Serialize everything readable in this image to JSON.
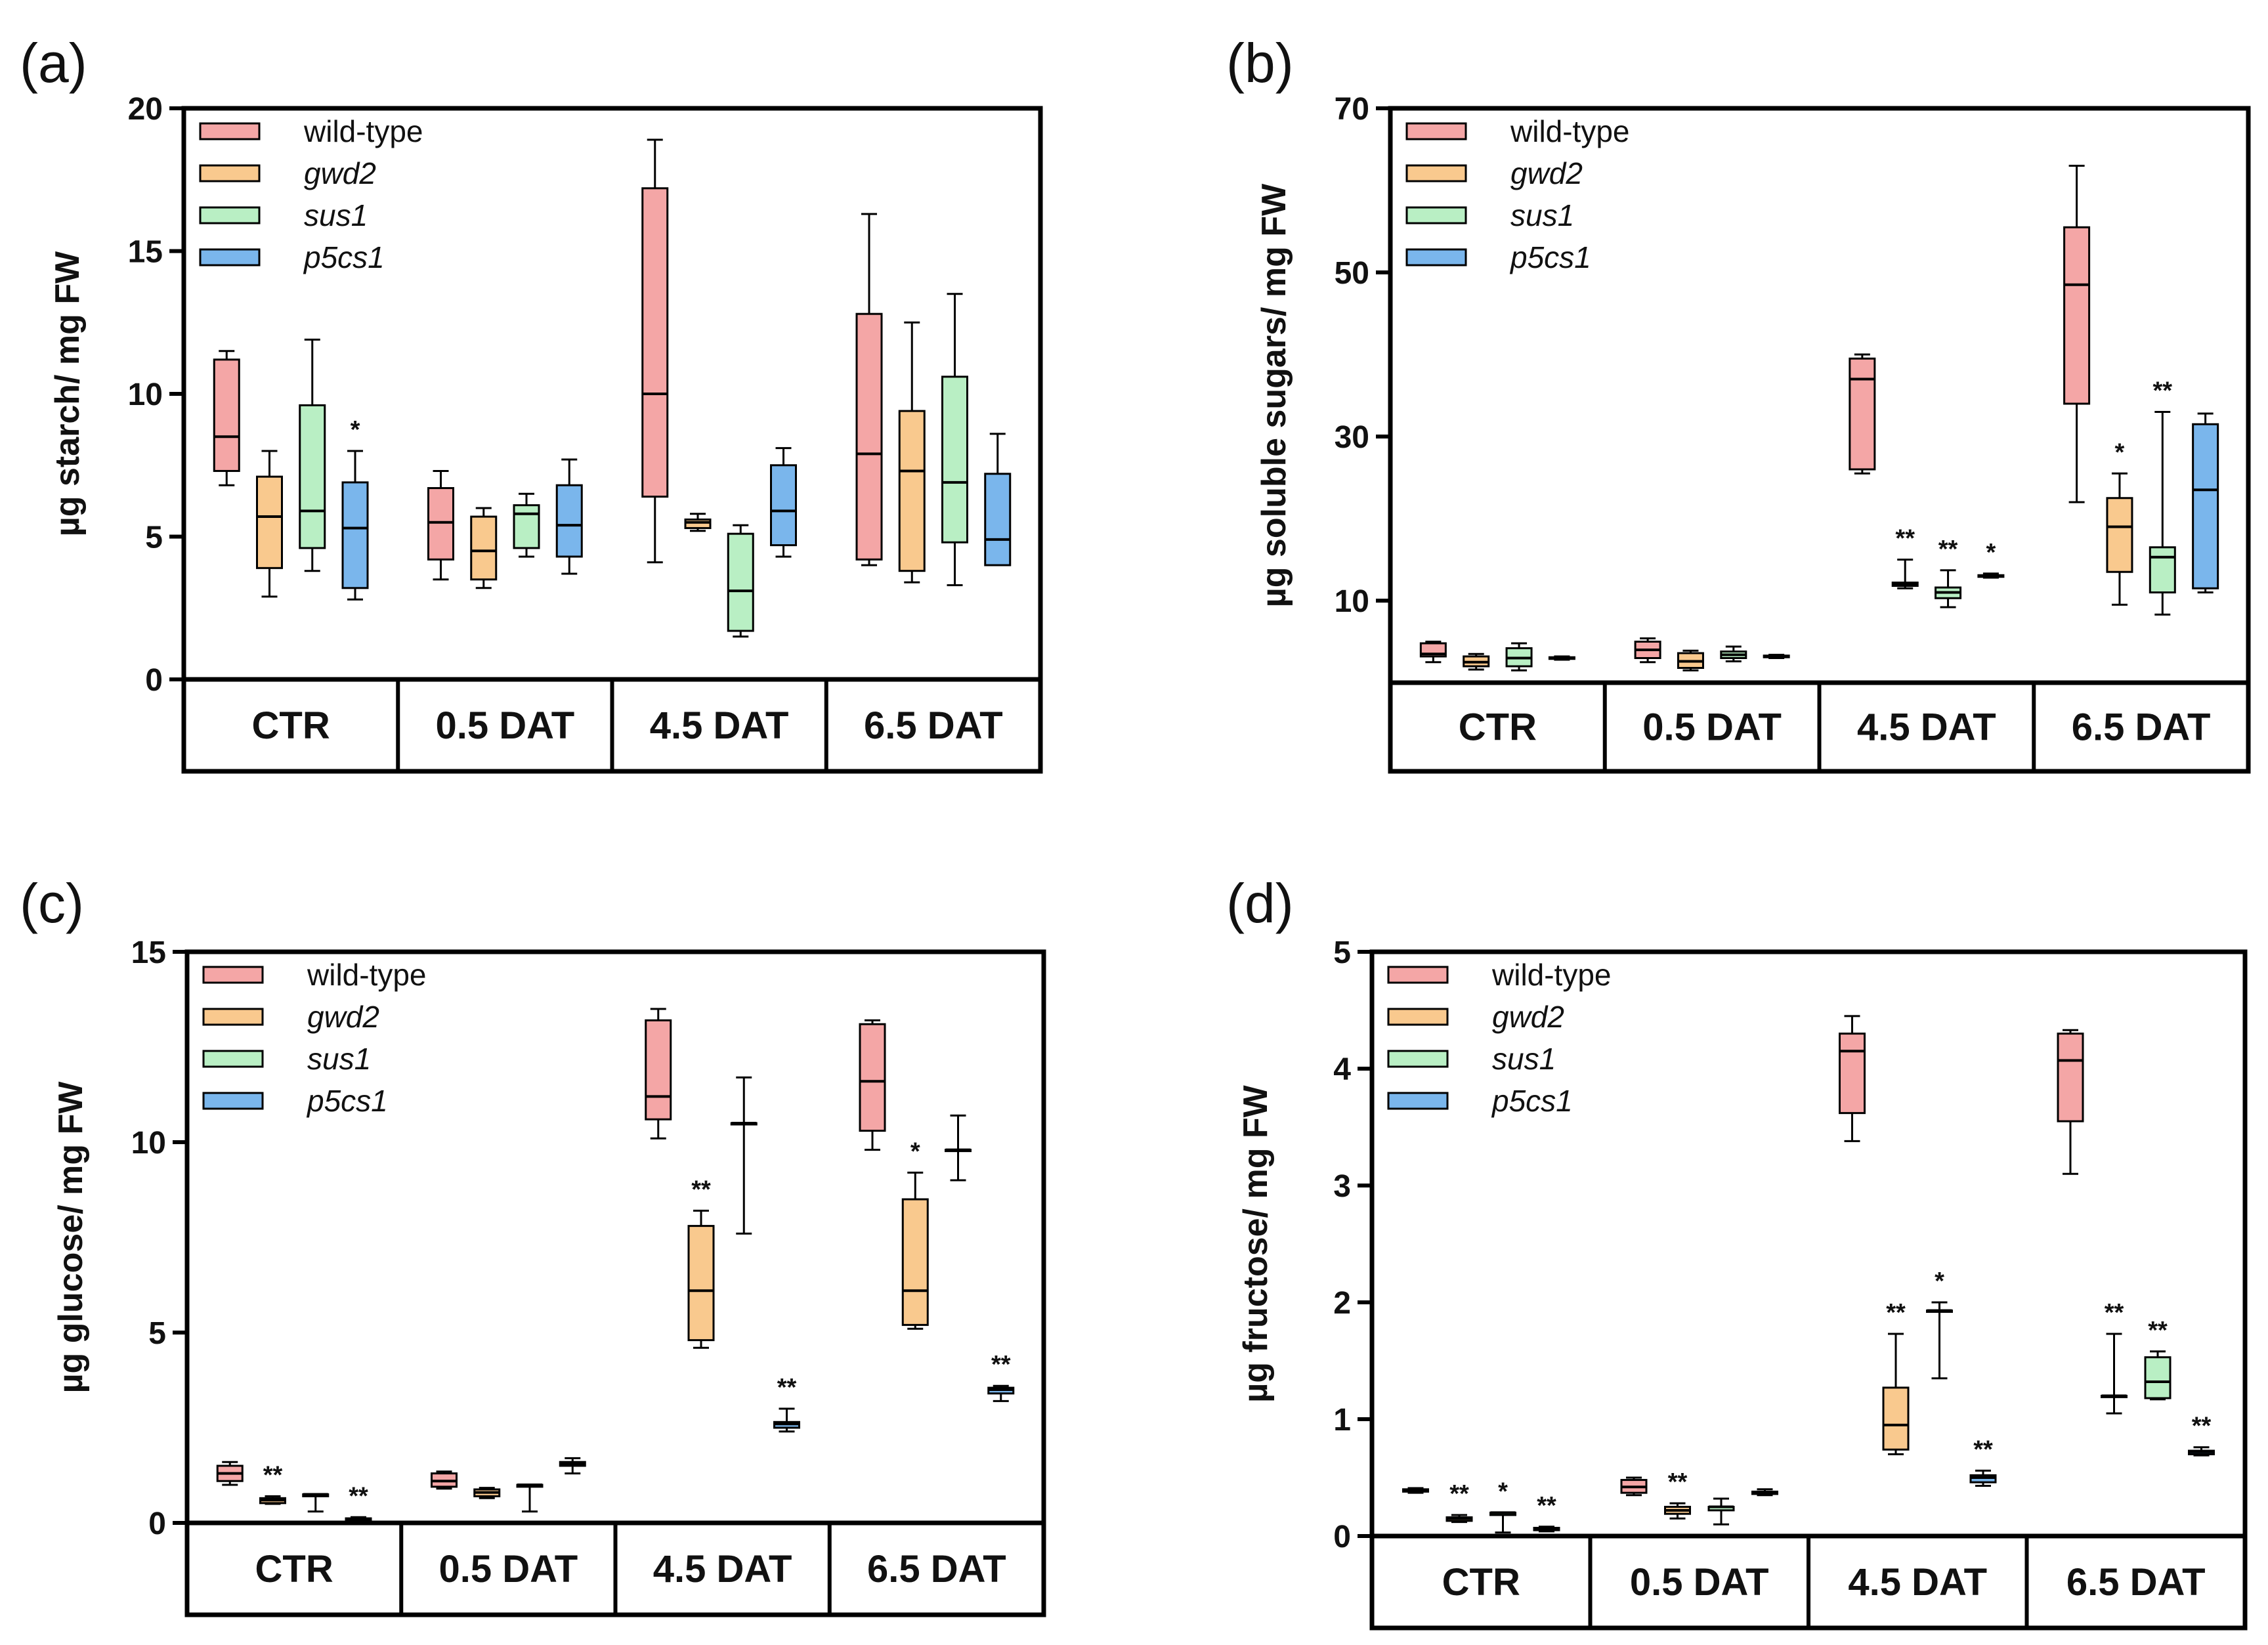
{
  "groups": [
    "CTR",
    "0.5 DAT",
    "4.5 DAT",
    "6.5 DAT"
  ],
  "legend": [
    {
      "label": "wild-type",
      "italic": false
    },
    {
      "label": "gwd2",
      "italic": true
    },
    {
      "label": "sus1",
      "italic": true
    },
    {
      "label": "p5cs1",
      "italic": true
    }
  ],
  "colors": [
    "#f4a6a6",
    "#f9c98e",
    "#b9efc4",
    "#7ab6ec"
  ],
  "chart_data": [
    {
      "type": "box",
      "panel": "(a)",
      "ylabel": "µg starch/ mg FW",
      "ylim": [
        0,
        20
      ],
      "yticks": [
        0,
        5,
        10,
        15,
        20
      ],
      "ytick_labels": [
        "0",
        "5",
        "10",
        "15",
        "20"
      ],
      "series": [
        {
          "name": "wild-type",
          "boxes": [
            {
              "min": 6.8,
              "q1": 7.3,
              "med": 8.5,
              "q3": 11.2,
              "max": 11.5,
              "sig": ""
            },
            {
              "min": 3.5,
              "q1": 4.2,
              "med": 5.5,
              "q3": 6.7,
              "max": 7.3,
              "sig": ""
            },
            {
              "min": 4.1,
              "q1": 6.4,
              "med": 10.0,
              "q3": 17.2,
              "max": 18.9,
              "sig": ""
            },
            {
              "min": 4.0,
              "q1": 4.2,
              "med": 7.9,
              "q3": 12.8,
              "max": 16.3,
              "sig": ""
            }
          ]
        },
        {
          "name": "gwd2",
          "boxes": [
            {
              "min": 2.9,
              "q1": 3.9,
              "med": 5.7,
              "q3": 7.1,
              "max": 8.0,
              "sig": ""
            },
            {
              "min": 3.2,
              "q1": 3.5,
              "med": 4.5,
              "q3": 5.7,
              "max": 6.0,
              "sig": ""
            },
            {
              "min": 5.2,
              "q1": 5.3,
              "med": 5.5,
              "q3": 5.6,
              "max": 5.8,
              "sig": ""
            },
            {
              "min": 3.4,
              "q1": 3.8,
              "med": 7.3,
              "q3": 9.4,
              "max": 12.5,
              "sig": ""
            }
          ]
        },
        {
          "name": "sus1",
          "boxes": [
            {
              "min": 3.8,
              "q1": 4.6,
              "med": 5.9,
              "q3": 9.6,
              "max": 11.9,
              "sig": ""
            },
            {
              "min": 4.3,
              "q1": 4.6,
              "med": 5.8,
              "q3": 6.1,
              "max": 6.5,
              "sig": ""
            },
            {
              "min": 1.5,
              "q1": 1.7,
              "med": 3.1,
              "q3": 5.1,
              "max": 5.4,
              "sig": ""
            },
            {
              "min": 3.3,
              "q1": 4.8,
              "med": 6.9,
              "q3": 10.6,
              "max": 13.5,
              "sig": ""
            }
          ]
        },
        {
          "name": "p5cs1",
          "boxes": [
            {
              "min": 2.8,
              "q1": 3.2,
              "med": 5.3,
              "q3": 6.9,
              "max": 8.0,
              "sig": "*"
            },
            {
              "min": 3.7,
              "q1": 4.3,
              "med": 5.4,
              "q3": 6.8,
              "max": 7.7,
              "sig": ""
            },
            {
              "min": 4.3,
              "q1": 4.7,
              "med": 5.9,
              "q3": 7.5,
              "max": 8.1,
              "sig": ""
            },
            {
              "min": 4.0,
              "q1": 4.0,
              "med": 4.9,
              "q3": 7.2,
              "max": 8.6,
              "sig": ""
            }
          ]
        }
      ]
    },
    {
      "type": "box",
      "panel": "(b)",
      "ylabel": "µg soluble sugars/ mg FW",
      "ylim": [
        0,
        70
      ],
      "yticks": [
        10,
        30,
        50,
        70
      ],
      "ytick_labels": [
        "10",
        "30",
        "50",
        "70"
      ],
      "series": [
        {
          "name": "wild-type",
          "boxes": [
            {
              "min": 2.5,
              "q1": 3.2,
              "med": 3.5,
              "q3": 4.8,
              "max": 5.0,
              "sig": ""
            },
            {
              "min": 2.5,
              "q1": 3.0,
              "med": 4.0,
              "q3": 5.0,
              "max": 5.4,
              "sig": ""
            },
            {
              "min": 25.5,
              "q1": 26.0,
              "med": 37.0,
              "q3": 39.5,
              "max": 40.0,
              "sig": ""
            },
            {
              "min": 22.0,
              "q1": 34.0,
              "med": 48.5,
              "q3": 55.5,
              "max": 63.0,
              "sig": ""
            }
          ]
        },
        {
          "name": "gwd2",
          "boxes": [
            {
              "min": 1.6,
              "q1": 2.0,
              "med": 2.5,
              "q3": 3.2,
              "max": 3.5,
              "sig": ""
            },
            {
              "min": 1.5,
              "q1": 1.8,
              "med": 2.6,
              "q3": 3.6,
              "max": 3.9,
              "sig": ""
            },
            {
              "min": 11.5,
              "q1": 11.8,
              "med": 12.0,
              "q3": 12.2,
              "max": 15.0,
              "sig": "**"
            },
            {
              "min": 9.5,
              "q1": 13.5,
              "med": 19.0,
              "q3": 22.5,
              "max": 25.5,
              "sig": "*"
            }
          ]
        },
        {
          "name": "sus1",
          "boxes": [
            {
              "min": 1.5,
              "q1": 2.0,
              "med": 3.0,
              "q3": 4.2,
              "max": 4.8,
              "sig": ""
            },
            {
              "min": 2.6,
              "q1": 3.0,
              "med": 3.4,
              "q3": 3.8,
              "max": 4.4,
              "sig": ""
            },
            {
              "min": 9.2,
              "q1": 10.3,
              "med": 11.0,
              "q3": 11.6,
              "max": 13.7,
              "sig": "**"
            },
            {
              "min": 8.3,
              "q1": 11.0,
              "med": 15.3,
              "q3": 16.5,
              "max": 33.0,
              "sig": "**"
            }
          ]
        },
        {
          "name": "p5cs1",
          "boxes": [
            {
              "min": 2.8,
              "q1": 2.9,
              "med": 3.0,
              "q3": 3.1,
              "max": 3.2,
              "sig": ""
            },
            {
              "min": 3.0,
              "q1": 3.1,
              "med": 3.2,
              "q3": 3.3,
              "max": 3.4,
              "sig": ""
            },
            {
              "min": 12.8,
              "q1": 12.9,
              "med": 13.0,
              "q3": 13.1,
              "max": 13.3,
              "sig": "*"
            },
            {
              "min": 11.0,
              "q1": 11.5,
              "med": 23.5,
              "q3": 31.5,
              "max": 32.8,
              "sig": ""
            }
          ]
        }
      ]
    },
    {
      "type": "box",
      "panel": "(c)",
      "ylabel": "µg glucose/ mg FW",
      "ylim": [
        0,
        15
      ],
      "yticks": [
        0,
        5,
        10,
        15
      ],
      "ytick_labels": [
        "0",
        "5",
        "10",
        "15"
      ],
      "series": [
        {
          "name": "wild-type",
          "boxes": [
            {
              "min": 1.0,
              "q1": 1.1,
              "med": 1.3,
              "q3": 1.5,
              "max": 1.6,
              "sig": ""
            },
            {
              "min": 0.9,
              "q1": 0.95,
              "med": 1.1,
              "q3": 1.3,
              "max": 1.35,
              "sig": ""
            },
            {
              "min": 10.1,
              "q1": 10.6,
              "med": 11.2,
              "q3": 13.2,
              "max": 13.5,
              "sig": ""
            },
            {
              "min": 9.8,
              "q1": 10.3,
              "med": 11.6,
              "q3": 13.1,
              "max": 13.2,
              "sig": ""
            }
          ]
        },
        {
          "name": "gwd2",
          "boxes": [
            {
              "min": 0.5,
              "q1": 0.52,
              "med": 0.6,
              "q3": 0.65,
              "max": 0.7,
              "sig": "**"
            },
            {
              "min": 0.65,
              "q1": 0.7,
              "med": 0.8,
              "q3": 0.88,
              "max": 0.92,
              "sig": ""
            },
            {
              "min": 4.6,
              "q1": 4.8,
              "med": 6.1,
              "q3": 7.8,
              "max": 8.2,
              "sig": "**"
            },
            {
              "min": 5.1,
              "q1": 5.2,
              "med": 6.1,
              "q3": 8.5,
              "max": 9.2,
              "sig": "*"
            }
          ]
        },
        {
          "name": "sus1",
          "boxes": [
            {
              "min": 0.3,
              "q1": 0.7,
              "med": 0.75,
              "q3": 0.75,
              "max": 0.75,
              "sig": ""
            },
            {
              "min": 0.3,
              "q1": 0.95,
              "med": 1.0,
              "q3": 1.0,
              "max": 1.0,
              "sig": ""
            },
            {
              "min": 7.6,
              "q1": 10.5,
              "med": 10.5,
              "q3": 10.5,
              "max": 11.7,
              "sig": ""
            },
            {
              "min": 9.0,
              "q1": 9.8,
              "med": 9.8,
              "q3": 9.8,
              "max": 10.7,
              "sig": ""
            }
          ]
        },
        {
          "name": "p5cs1",
          "boxes": [
            {
              "min": 0.05,
              "q1": 0.08,
              "med": 0.1,
              "q3": 0.12,
              "max": 0.15,
              "sig": "**"
            },
            {
              "min": 1.3,
              "q1": 1.5,
              "med": 1.55,
              "q3": 1.6,
              "max": 1.7,
              "sig": ""
            },
            {
              "min": 2.4,
              "q1": 2.5,
              "med": 2.6,
              "q3": 2.65,
              "max": 3.0,
              "sig": "**"
            },
            {
              "min": 3.2,
              "q1": 3.4,
              "med": 3.5,
              "q3": 3.55,
              "max": 3.6,
              "sig": "**"
            }
          ]
        }
      ]
    },
    {
      "type": "box",
      "panel": "(d)",
      "ylabel": "µg fructose/ mg FW",
      "ylim": [
        0,
        5
      ],
      "yticks": [
        0,
        1,
        2,
        3,
        4,
        5
      ],
      "ytick_labels": [
        "0",
        "1",
        "2",
        "3",
        "4",
        "5"
      ],
      "series": [
        {
          "name": "wild-type",
          "boxes": [
            {
              "min": 0.37,
              "q1": 0.38,
              "med": 0.39,
              "q3": 0.4,
              "max": 0.41,
              "sig": ""
            },
            {
              "min": 0.35,
              "q1": 0.37,
              "med": 0.42,
              "q3": 0.48,
              "max": 0.5,
              "sig": ""
            },
            {
              "min": 3.38,
              "q1": 3.62,
              "med": 4.15,
              "q3": 4.3,
              "max": 4.45,
              "sig": ""
            },
            {
              "min": 3.1,
              "q1": 3.55,
              "med": 4.07,
              "q3": 4.3,
              "max": 4.33,
              "sig": ""
            }
          ]
        },
        {
          "name": "gwd2",
          "boxes": [
            {
              "min": 0.12,
              "q1": 0.13,
              "med": 0.15,
              "q3": 0.16,
              "max": 0.18,
              "sig": "**"
            },
            {
              "min": 0.15,
              "q1": 0.19,
              "med": 0.22,
              "q3": 0.25,
              "max": 0.28,
              "sig": "**"
            },
            {
              "min": 0.7,
              "q1": 0.74,
              "med": 0.95,
              "q3": 1.27,
              "max": 1.73,
              "sig": "**"
            },
            {
              "min": 1.05,
              "q1": 1.2,
              "med": 1.2,
              "q3": 1.2,
              "max": 1.73,
              "sig": "**"
            }
          ]
        },
        {
          "name": "sus1",
          "boxes": [
            {
              "min": 0.03,
              "q1": 0.18,
              "med": 0.2,
              "q3": 0.2,
              "max": 0.2,
              "sig": "*"
            },
            {
              "min": 0.1,
              "q1": 0.22,
              "med": 0.25,
              "q3": 0.25,
              "max": 0.32,
              "sig": ""
            },
            {
              "min": 1.35,
              "q1": 1.93,
              "med": 1.93,
              "q3": 1.93,
              "max": 2.0,
              "sig": "*"
            },
            {
              "min": 1.17,
              "q1": 1.18,
              "med": 1.32,
              "q3": 1.53,
              "max": 1.58,
              "sig": "**"
            }
          ]
        },
        {
          "name": "p5cs1",
          "boxes": [
            {
              "min": 0.04,
              "q1": 0.05,
              "med": 0.06,
              "q3": 0.07,
              "max": 0.08,
              "sig": "**"
            },
            {
              "min": 0.35,
              "q1": 0.36,
              "med": 0.37,
              "q3": 0.38,
              "max": 0.4,
              "sig": ""
            },
            {
              "min": 0.43,
              "q1": 0.46,
              "med": 0.5,
              "q3": 0.52,
              "max": 0.56,
              "sig": "**"
            },
            {
              "min": 0.69,
              "q1": 0.7,
              "med": 0.72,
              "q3": 0.73,
              "max": 0.76,
              "sig": "**"
            }
          ]
        }
      ]
    }
  ]
}
